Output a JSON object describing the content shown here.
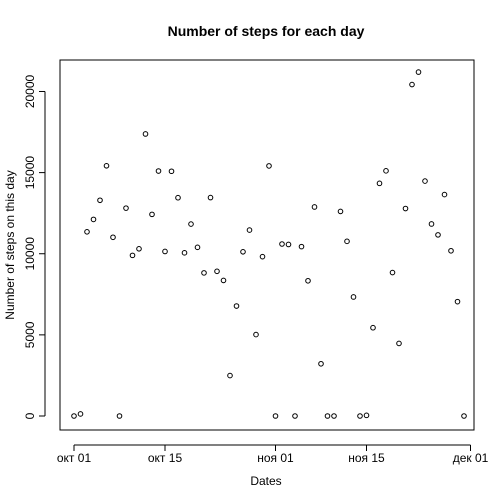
{
  "chart_data": {
    "type": "scatter",
    "title": "Number of steps for each day",
    "xlabel": "Dates",
    "ylabel": "Number of steps on this day",
    "x_ticks": [
      "окт 01",
      "окт 15",
      "ноя 01",
      "ноя 15",
      "дек 01"
    ],
    "y_ticks": [
      "0",
      "5000",
      "10000",
      "15000",
      "20000"
    ],
    "x_range": [
      "2012-10-01",
      "2012-11-30"
    ],
    "ylim": [
      0,
      21500
    ],
    "grid": false,
    "x": [
      "2012-10-01",
      "2012-10-02",
      "2012-10-03",
      "2012-10-04",
      "2012-10-05",
      "2012-10-06",
      "2012-10-07",
      "2012-10-08",
      "2012-10-09",
      "2012-10-10",
      "2012-10-11",
      "2012-10-12",
      "2012-10-13",
      "2012-10-14",
      "2012-10-15",
      "2012-10-16",
      "2012-10-17",
      "2012-10-18",
      "2012-10-19",
      "2012-10-20",
      "2012-10-21",
      "2012-10-22",
      "2012-10-23",
      "2012-10-24",
      "2012-10-25",
      "2012-10-26",
      "2012-10-27",
      "2012-10-28",
      "2012-10-29",
      "2012-10-30",
      "2012-10-31",
      "2012-11-01",
      "2012-11-02",
      "2012-11-03",
      "2012-11-04",
      "2012-11-05",
      "2012-11-06",
      "2012-11-07",
      "2012-11-08",
      "2012-11-09",
      "2012-11-10",
      "2012-11-11",
      "2012-11-12",
      "2012-11-13",
      "2012-11-14",
      "2012-11-15",
      "2012-11-16",
      "2012-11-17",
      "2012-11-18",
      "2012-11-19",
      "2012-11-20",
      "2012-11-21",
      "2012-11-22",
      "2012-11-23",
      "2012-11-24",
      "2012-11-25",
      "2012-11-26",
      "2012-11-27",
      "2012-11-28",
      "2012-11-29",
      "2012-11-30"
    ],
    "y": [
      0,
      126,
      11352,
      12116,
      13294,
      15420,
      11015,
      0,
      12811,
      9900,
      10304,
      17382,
      12426,
      15098,
      10139,
      15084,
      13452,
      10056,
      11829,
      10395,
      8821,
      13460,
      8918,
      8355,
      2492,
      6778,
      10119,
      11458,
      5018,
      9819,
      15414,
      0,
      10600,
      10571,
      0,
      10439,
      8334,
      12883,
      3219,
      0,
      0,
      12608,
      10765,
      7336,
      0,
      41,
      5441,
      14339,
      15110,
      8841,
      4472,
      12787,
      20427,
      21194,
      14478,
      11834,
      11162,
      13646,
      10183,
      7047,
      0
    ]
  }
}
